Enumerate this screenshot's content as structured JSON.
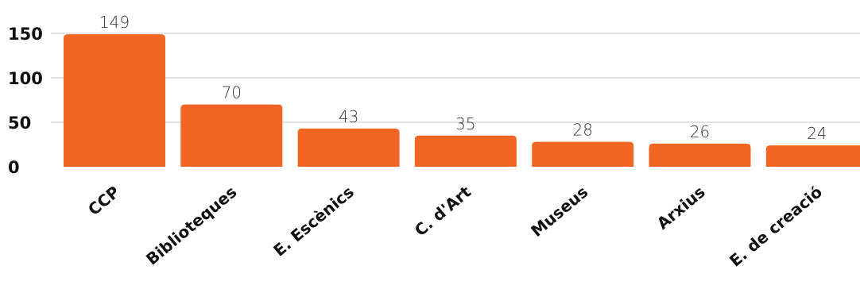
{
  "chart_data": {
    "type": "bar",
    "categories": [
      "CCP",
      "Biblioteques",
      "E. Escènics",
      "C. d'Art",
      "Museus",
      "Arxius",
      "E. de creació"
    ],
    "values": [
      149,
      70,
      43,
      35,
      28,
      26,
      24
    ],
    "value_labels": [
      "149",
      "70",
      "43",
      "35",
      "28",
      "26",
      "24"
    ],
    "yticks": [
      0,
      50,
      100,
      150
    ],
    "ytick_labels": [
      "0",
      "50",
      "100",
      "150"
    ],
    "ylim": [
      0,
      175
    ],
    "title": "",
    "xlabel": "",
    "ylabel": "",
    "grid": true,
    "legend": "none",
    "bar_color": "#f26522",
    "grid_color": "#c8c8c8",
    "text_color": "#111111"
  }
}
